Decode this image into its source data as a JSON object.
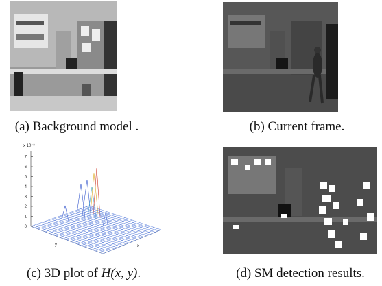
{
  "subfigures": [
    {
      "caption": "(a) Background model ."
    },
    {
      "caption": "(b) Current frame."
    },
    {
      "caption_prefix": "(c) 3D plot of ",
      "caption_math": "H(x, y)",
      "caption_suffix": ".",
      "plot": {
        "z_scale": "x 10⁻³",
        "z_ticks": [
          "0",
          "1",
          "2",
          "3",
          "4",
          "5",
          "6",
          "7"
        ],
        "x_label": "x",
        "y_label": "y"
      }
    },
    {
      "caption": "(d) SM detection results."
    }
  ]
}
